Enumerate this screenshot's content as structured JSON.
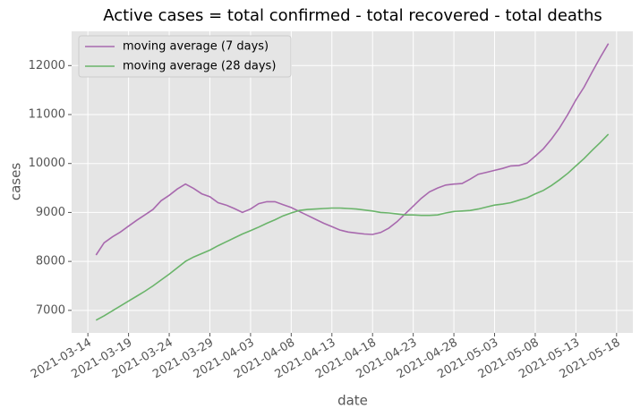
{
  "chart_data": {
    "type": "line",
    "title": "Active cases = total confirmed - total recovered - total deaths",
    "x_label": "date",
    "y_label": "cases",
    "x": [
      "2021-03-15",
      "2021-03-16",
      "2021-03-17",
      "2021-03-18",
      "2021-03-19",
      "2021-03-20",
      "2021-03-21",
      "2021-03-22",
      "2021-03-23",
      "2021-03-24",
      "2021-03-25",
      "2021-03-26",
      "2021-03-27",
      "2021-03-28",
      "2021-03-29",
      "2021-03-30",
      "2021-03-31",
      "2021-04-01",
      "2021-04-02",
      "2021-04-03",
      "2021-04-04",
      "2021-04-05",
      "2021-04-06",
      "2021-04-07",
      "2021-04-08",
      "2021-04-09",
      "2021-04-10",
      "2021-04-11",
      "2021-04-12",
      "2021-04-13",
      "2021-04-14",
      "2021-04-15",
      "2021-04-16",
      "2021-04-17",
      "2021-04-18",
      "2021-04-19",
      "2021-04-20",
      "2021-04-21",
      "2021-04-22",
      "2021-04-23",
      "2021-04-24",
      "2021-04-25",
      "2021-04-26",
      "2021-04-27",
      "2021-04-28",
      "2021-04-29",
      "2021-04-30",
      "2021-05-01",
      "2021-05-02",
      "2021-05-03",
      "2021-05-04",
      "2021-05-05",
      "2021-05-06",
      "2021-05-07",
      "2021-05-08",
      "2021-05-09",
      "2021-05-10",
      "2021-05-11",
      "2021-05-12",
      "2021-05-13",
      "2021-05-14",
      "2021-05-15",
      "2021-05-16",
      "2021-05-17"
    ],
    "series": [
      {
        "name": "moving average (7 days)",
        "color": "#a869ae",
        "values": [
          8130,
          8380,
          8500,
          8600,
          8720,
          8840,
          8950,
          9060,
          9240,
          9350,
          9480,
          9580,
          9490,
          9380,
          9320,
          9200,
          9150,
          9080,
          9000,
          9070,
          9180,
          9220,
          9220,
          9160,
          9100,
          9020,
          8940,
          8860,
          8780,
          8710,
          8640,
          8600,
          8580,
          8560,
          8550,
          8590,
          8680,
          8810,
          8970,
          9130,
          9290,
          9420,
          9500,
          9560,
          9580,
          9590,
          9680,
          9780,
          9820,
          9860,
          9900,
          9950,
          9960,
          10010,
          10150,
          10300,
          10500,
          10730,
          11000,
          11300,
          11560,
          11870,
          12170,
          12450
        ]
      },
      {
        "name": "moving average (28 days)",
        "color": "#6ab46a",
        "values": [
          6800,
          6890,
          6990,
          7090,
          7190,
          7290,
          7390,
          7500,
          7620,
          7740,
          7870,
          8000,
          8090,
          8160,
          8230,
          8320,
          8400,
          8480,
          8560,
          8630,
          8700,
          8780,
          8850,
          8930,
          8990,
          9040,
          9060,
          9070,
          9080,
          9090,
          9090,
          9080,
          9070,
          9050,
          9030,
          9000,
          8990,
          8970,
          8950,
          8950,
          8940,
          8940,
          8950,
          8990,
          9020,
          9030,
          9040,
          9070,
          9110,
          9150,
          9170,
          9200,
          9250,
          9300,
          9380,
          9450,
          9550,
          9670,
          9800,
          9950,
          10100,
          10270,
          10430,
          10600
        ]
      }
    ],
    "xlim": [
      "2021-03-12",
      "2021-05-20"
    ],
    "xticks": [
      "2021-03-14",
      "2021-03-19",
      "2021-03-24",
      "2021-03-29",
      "2021-04-03",
      "2021-04-08",
      "2021-04-13",
      "2021-04-18",
      "2021-04-23",
      "2021-04-28",
      "2021-05-03",
      "2021-05-08",
      "2021-05-13",
      "2021-05-18"
    ],
    "ylim": [
      6540,
      12700
    ],
    "yticks": [
      7000,
      8000,
      9000,
      10000,
      11000,
      12000
    ],
    "grid": true,
    "legend": "upper left"
  }
}
